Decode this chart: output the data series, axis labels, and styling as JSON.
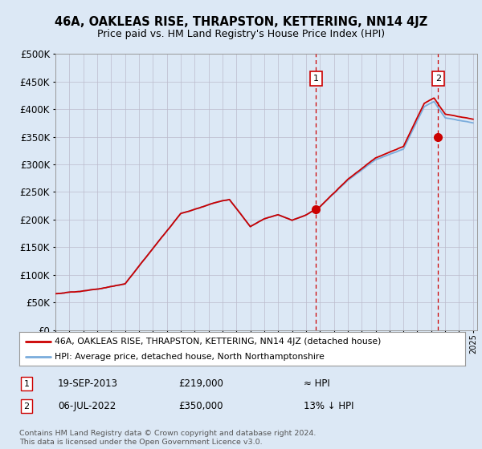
{
  "title": "46A, OAKLEAS RISE, THRAPSTON, KETTERING, NN14 4JZ",
  "subtitle": "Price paid vs. HM Land Registry's House Price Index (HPI)",
  "legend_line1": "46A, OAKLEAS RISE, THRAPSTON, KETTERING, NN14 4JZ (detached house)",
  "legend_line2": "HPI: Average price, detached house, North Northamptonshire",
  "annotation1_date": "19-SEP-2013",
  "annotation1_price": "£219,000",
  "annotation1_hpi": "≈ HPI",
  "annotation2_date": "06-JUL-2022",
  "annotation2_price": "£350,000",
  "annotation2_hpi": "13% ↓ HPI",
  "footer": "Contains HM Land Registry data © Crown copyright and database right 2024.\nThis data is licensed under the Open Government Licence v3.0.",
  "line_color": "#cc0000",
  "hpi_color": "#7aacdc",
  "background_color": "#dce8f5",
  "plot_bg": "#dce8f5",
  "annotation_color": "#cc0000",
  "ylim": [
    0,
    500000
  ],
  "yticks": [
    0,
    50000,
    100000,
    150000,
    200000,
    250000,
    300000,
    350000,
    400000,
    450000,
    500000
  ],
  "sale1_year": 2013.72,
  "sale1_price": 219000,
  "sale2_year": 2022.5,
  "sale2_price": 350000
}
